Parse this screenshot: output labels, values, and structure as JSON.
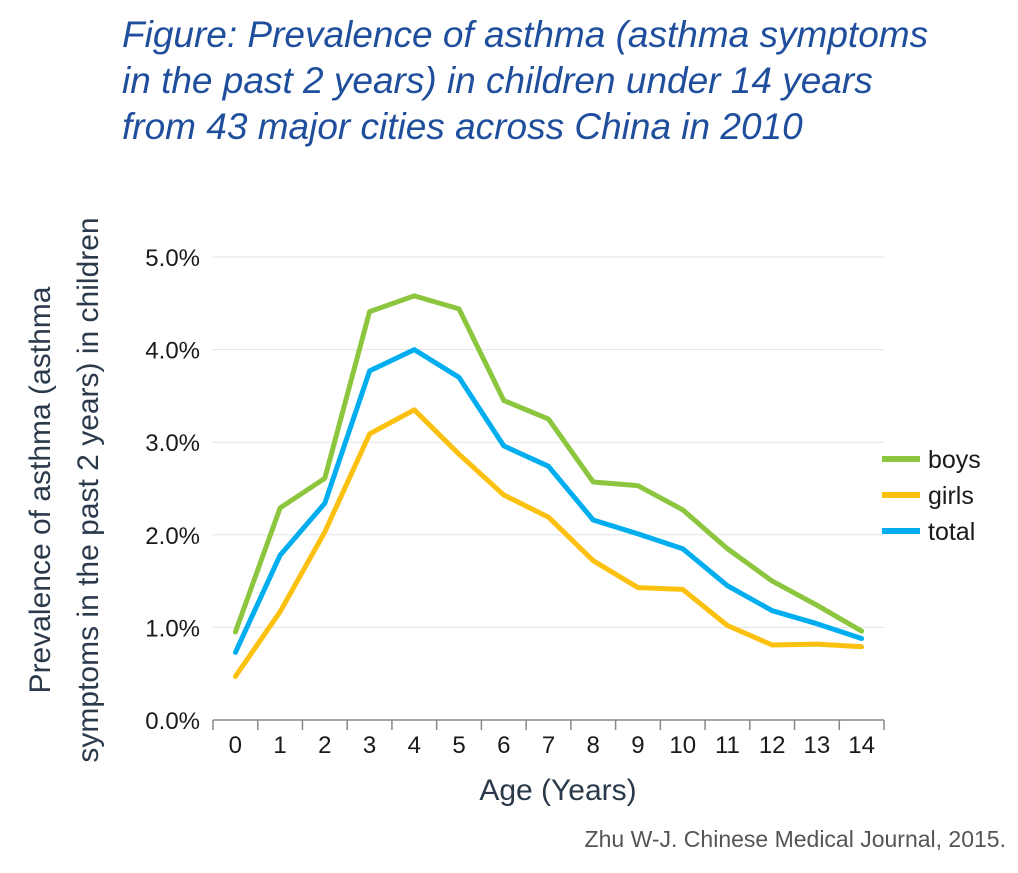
{
  "chart_data": {
    "type": "line",
    "title": "Figure: Prevalence of asthma (asthma symptoms in the past 2 years) in children under 14 years from 43 major cities across China in 2010",
    "title_lines": [
      "Figure: Prevalence of asthma (asthma symptoms",
      "in the past 2 years) in children under 14 years",
      "from 43 major cities across China in 2010"
    ],
    "xlabel": "Age (Years)",
    "ylabel": "Prevalence of asthma (asthma symptoms in the past 2 years) in children",
    "ylabel_lines": [
      "Prevalence of asthma (asthma",
      "symptoms in the past 2 years) in children"
    ],
    "x": [
      0,
      1,
      2,
      3,
      4,
      5,
      6,
      7,
      8,
      9,
      10,
      11,
      12,
      13,
      14
    ],
    "x_tick_labels": [
      "0",
      "1",
      "2",
      "3",
      "4",
      "5",
      "6",
      "7",
      "8",
      "9",
      "10",
      "11",
      "12",
      "13",
      "14"
    ],
    "ylim": [
      0,
      0.05
    ],
    "y_ticks": [
      0,
      0.01,
      0.02,
      0.03,
      0.04,
      0.05
    ],
    "y_tick_labels": [
      "0.0%",
      "1.0%",
      "2.0%",
      "3.0%",
      "4.0%",
      "5.0%"
    ],
    "grid": "horizontal",
    "legend_position": "right",
    "series": [
      {
        "name": "boys",
        "color": "#8cc63f",
        "values": [
          0.0095,
          0.0229,
          0.0261,
          0.0441,
          0.0458,
          0.0444,
          0.0345,
          0.0325,
          0.0257,
          0.0253,
          0.0227,
          0.0185,
          0.015,
          0.0124,
          0.0096
        ]
      },
      {
        "name": "girls",
        "color": "#fcc10f",
        "values": [
          0.0047,
          0.0117,
          0.0203,
          0.0309,
          0.0335,
          0.0287,
          0.0243,
          0.0219,
          0.0172,
          0.0143,
          0.0141,
          0.0102,
          0.0081,
          0.0082,
          0.0079
        ]
      },
      {
        "name": "total",
        "color": "#00aeef",
        "values": [
          0.0073,
          0.0178,
          0.0234,
          0.0377,
          0.04,
          0.037,
          0.0296,
          0.0274,
          0.0216,
          0.0201,
          0.0185,
          0.0145,
          0.0118,
          0.0104,
          0.0088
        ]
      }
    ]
  },
  "source": "Zhu W-J. Chinese Medical Journal, 2015."
}
